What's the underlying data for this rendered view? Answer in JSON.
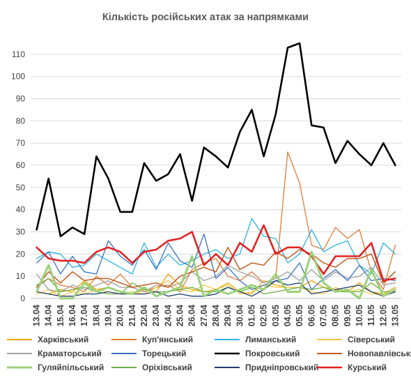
{
  "chart_data": {
    "type": "line",
    "title": "Кількість російських атак за напрямками",
    "xlabel": "",
    "ylabel": "",
    "ylim": [
      0,
      115
    ],
    "yticks": [
      0,
      10,
      20,
      30,
      40,
      50,
      60,
      70,
      80,
      90,
      100,
      110
    ],
    "grid": "horizontal",
    "legend_position": "bottom",
    "categories": [
      "13.04",
      "14.04",
      "15.04",
      "16.04",
      "17.04",
      "18.04",
      "19.04",
      "20.04",
      "21.04",
      "22.04",
      "23.04",
      "24.04",
      "25.04",
      "26.04",
      "27.04",
      "28.04",
      "29.04",
      "30.04",
      "01.05",
      "02.05",
      "03.05",
      "04.05",
      "05.05",
      "06.05",
      "07.05",
      "08.05",
      "09.05",
      "10.05",
      "11.05",
      "12.05",
      "13.05"
    ],
    "series": [
      {
        "name": "Харківський",
        "color": "#e8a800",
        "width": 1.3,
        "values": [
          3,
          2,
          4,
          3,
          8,
          4,
          5,
          3,
          2,
          4,
          3,
          11,
          6,
          4,
          3,
          4,
          7,
          3,
          2,
          8,
          6,
          5,
          5,
          8,
          5,
          4,
          3,
          7,
          3,
          2,
          5
        ]
      },
      {
        "name": "Куп'янський",
        "color": "#e07b39",
        "width": 1.3,
        "values": [
          5,
          9,
          6,
          5,
          3,
          10,
          6,
          11,
          5,
          3,
          5,
          6,
          3,
          13,
          16,
          18,
          10,
          8,
          12,
          7,
          9,
          66,
          52,
          24,
          22,
          32,
          27,
          31,
          12,
          4,
          24
        ]
      },
      {
        "name": "Лиманський",
        "color": "#27b3e5",
        "width": 1.3,
        "values": [
          18,
          21,
          20,
          14,
          15,
          20,
          17,
          14,
          11,
          25,
          14,
          20,
          15,
          17,
          20,
          22,
          18,
          20,
          36,
          28,
          27,
          16,
          20,
          31,
          21,
          24,
          26,
          15,
          11,
          25,
          20
        ]
      },
      {
        "name": "Сіверський",
        "color": "#f5c842",
        "width": 1.3,
        "values": [
          2,
          4,
          1,
          3,
          2,
          4,
          3,
          2,
          3,
          2,
          5,
          8,
          4,
          3,
          6,
          4,
          6,
          2,
          3,
          6,
          5,
          5,
          5,
          3,
          2,
          5,
          3,
          4,
          2,
          2,
          3
        ]
      },
      {
        "name": "Краматорський",
        "color": "#a0a0a0",
        "width": 1.3,
        "values": [
          11,
          4,
          3,
          6,
          4,
          6,
          8,
          5,
          5,
          3,
          6,
          5,
          7,
          12,
          8,
          10,
          15,
          12,
          10,
          7,
          9,
          12,
          8,
          13,
          8,
          12,
          9,
          10,
          14,
          6,
          7
        ]
      },
      {
        "name": "Торецький",
        "color": "#3a6fbf",
        "width": 1.3,
        "values": [
          16,
          21,
          11,
          19,
          12,
          11,
          26,
          19,
          15,
          22,
          13,
          25,
          17,
          14,
          29,
          9,
          14,
          8,
          4,
          6,
          8,
          9,
          16,
          4,
          9,
          13,
          8,
          15,
          8,
          9,
          8
        ]
      },
      {
        "name": "Покровський",
        "color": "#000000",
        "width": 2.6,
        "values": [
          31,
          54,
          28,
          32,
          29,
          64,
          54,
          39,
          39,
          61,
          53,
          56,
          65,
          44,
          68,
          64,
          59,
          75,
          85,
          64,
          83,
          113,
          115,
          78,
          77,
          61,
          71,
          65,
          60,
          70,
          60
        ]
      },
      {
        "name": "Новопавлівський",
        "color": "#c65a1e",
        "width": 1.5,
        "values": [
          5,
          12,
          7,
          12,
          8,
          9,
          9,
          7,
          5,
          6,
          7,
          5,
          10,
          12,
          14,
          12,
          23,
          13,
          16,
          15,
          21,
          18,
          22,
          20,
          16,
          14,
          18,
          18,
          20,
          7,
          12
        ]
      },
      {
        "name": "Гуляйпільський",
        "color": "#9bd17a",
        "width": 3,
        "values": [
          3,
          15,
          0,
          0,
          7,
          3,
          5,
          3,
          2,
          5,
          1,
          3,
          5,
          19,
          1,
          4,
          2,
          4,
          6,
          4,
          11,
          3,
          3,
          21,
          7,
          3,
          4,
          0,
          13,
          1,
          4
        ]
      },
      {
        "name": "Оріхівський",
        "color": "#6fae48",
        "width": 1.3,
        "values": [
          6,
          9,
          3,
          4,
          5,
          3,
          2,
          2,
          7,
          4,
          3,
          3,
          4,
          5,
          3,
          3,
          5,
          3,
          5,
          2,
          3,
          4,
          5,
          4,
          5,
          3,
          3,
          3,
          7,
          3,
          3
        ]
      },
      {
        "name": "Придніпровський",
        "color": "#1f3b6e",
        "width": 1.3,
        "values": [
          3,
          2,
          1,
          1,
          2,
          2,
          3,
          2,
          2,
          2,
          3,
          1,
          2,
          1,
          1,
          2,
          5,
          3,
          1,
          4,
          8,
          6,
          7,
          2,
          3,
          4,
          5,
          6,
          3,
          1,
          3
        ]
      },
      {
        "name": "Курський",
        "color": "#e32322",
        "width": 2.6,
        "values": [
          23,
          18,
          17,
          17,
          16,
          21,
          23,
          21,
          16,
          21,
          22,
          26,
          27,
          30,
          15,
          20,
          15,
          25,
          21,
          33,
          20,
          23,
          23,
          19,
          11,
          19,
          19,
          19,
          25,
          8,
          9
        ]
      }
    ]
  }
}
